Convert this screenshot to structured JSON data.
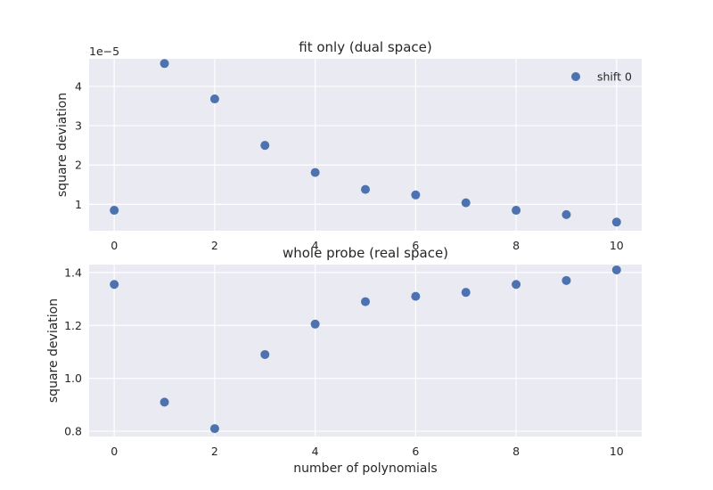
{
  "chart_data": [
    {
      "type": "scatter",
      "title": "fit only (dual space)",
      "ylabel": "square deviation",
      "xlabel": "",
      "y_scale_label": "1e−5",
      "y_multiplier": 1e-05,
      "xlim": [
        -0.5,
        10.5
      ],
      "ylim": [
        0.33,
        4.7
      ],
      "xticks": [
        0,
        2,
        4,
        6,
        8,
        10
      ],
      "xtick_labels": [
        "0",
        "2",
        "4",
        "6",
        "8",
        "10"
      ],
      "yticks": [
        1,
        2,
        3,
        4
      ],
      "ytick_labels": [
        "1",
        "2",
        "3",
        "4"
      ],
      "grid": true,
      "legend": {
        "position": "top-right",
        "entries": [
          "shift 0"
        ]
      },
      "series": [
        {
          "name": "shift 0",
          "color": "#4c72b0",
          "x": [
            0,
            1,
            2,
            3,
            4,
            5,
            6,
            7,
            8,
            9,
            10
          ],
          "y": [
            0.85,
            4.58,
            3.68,
            2.5,
            1.81,
            1.38,
            1.24,
            1.04,
            0.85,
            0.74,
            0.55
          ]
        }
      ]
    },
    {
      "type": "scatter",
      "title": "whole probe (real space)",
      "ylabel": "square deviation",
      "xlabel": "number of polynomials",
      "xlim": [
        -0.5,
        10.5
      ],
      "ylim": [
        0.78,
        1.43
      ],
      "xticks": [
        0,
        2,
        4,
        6,
        8,
        10
      ],
      "xtick_labels": [
        "0",
        "2",
        "4",
        "6",
        "8",
        "10"
      ],
      "yticks": [
        0.8,
        1.0,
        1.2,
        1.4
      ],
      "ytick_labels": [
        "0.8",
        "1.0",
        "1.2",
        "1.4"
      ],
      "grid": true,
      "series": [
        {
          "color": "#4c72b0",
          "x": [
            0,
            1,
            2,
            3,
            4,
            5,
            6,
            7,
            8,
            9,
            10
          ],
          "y": [
            1.355,
            0.91,
            0.81,
            1.09,
            1.205,
            1.29,
            1.31,
            1.325,
            1.355,
            1.37,
            1.41
          ]
        }
      ]
    }
  ]
}
